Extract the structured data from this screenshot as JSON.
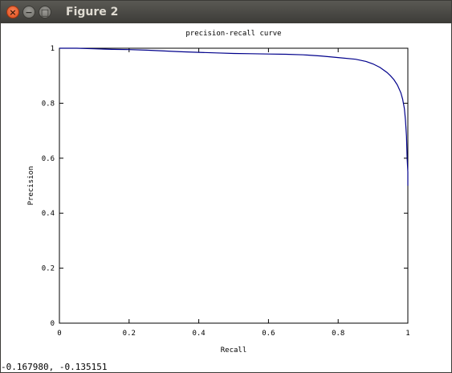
{
  "window": {
    "title": "Figure 2",
    "buttons": {
      "close": "×",
      "minimize": "−",
      "maximize": "□"
    }
  },
  "status": {
    "coordinates": "-0.167980, -0.135151"
  },
  "colors": {
    "curve": "#00008b",
    "titlebar": "#3c3b37",
    "close_button": "#df4a16"
  },
  "chart_data": {
    "type": "line",
    "title": "precision-recall curve",
    "xlabel": "Recall",
    "ylabel": "Precision",
    "xlim": [
      0,
      1
    ],
    "ylim": [
      0,
      1
    ],
    "xticks": [
      0,
      0.2,
      0.4,
      0.6,
      0.8,
      1
    ],
    "xtick_labels": [
      "0",
      "0.2",
      "0.4",
      "0.6",
      "0.8",
      "1"
    ],
    "yticks": [
      0,
      0.2,
      0.4,
      0.6,
      0.8,
      1
    ],
    "ytick_labels": [
      "0",
      "0.2",
      "0.4",
      "0.6",
      "0.8",
      "1"
    ],
    "grid": false,
    "series": [
      {
        "color": "#00008b",
        "x": [
          0,
          0.05,
          0.1,
          0.15,
          0.2,
          0.25,
          0.3,
          0.35,
          0.4,
          0.45,
          0.5,
          0.55,
          0.6,
          0.65,
          0.7,
          0.75,
          0.8,
          0.85,
          0.88,
          0.9,
          0.92,
          0.94,
          0.95,
          0.96,
          0.97,
          0.98,
          0.985,
          0.99,
          0.993,
          0.996,
          0.998,
          1.0,
          1.0
        ],
        "y": [
          1.0,
          1.0,
          0.998,
          0.996,
          0.995,
          0.993,
          0.99,
          0.987,
          0.985,
          0.983,
          0.981,
          0.98,
          0.979,
          0.978,
          0.976,
          0.972,
          0.966,
          0.96,
          0.952,
          0.943,
          0.93,
          0.912,
          0.9,
          0.886,
          0.866,
          0.838,
          0.815,
          0.78,
          0.74,
          0.68,
          0.6,
          0.55,
          0.5
        ]
      }
    ]
  }
}
